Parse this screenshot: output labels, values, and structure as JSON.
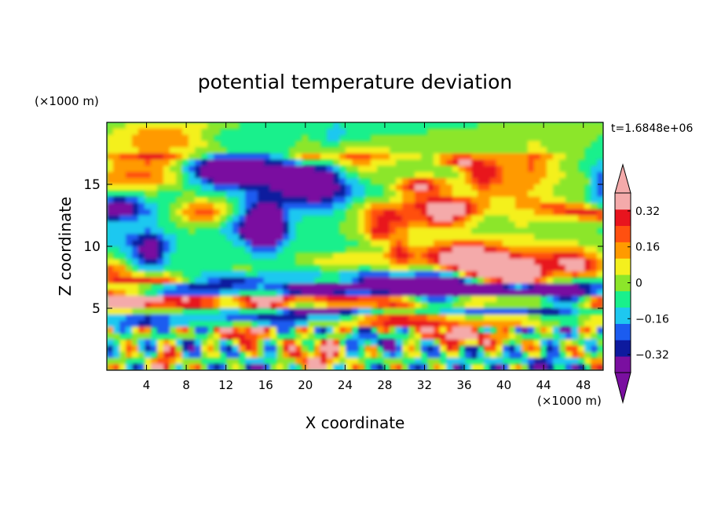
{
  "chart_data": {
    "type": "heatmap",
    "title": "potential temperature deviation",
    "xlabel": "X coordinate",
    "ylabel": "Z coordinate",
    "x_unit": "(×1000 m)",
    "y_unit": "(×1000 m)",
    "time_label": "t=1.6848e+06",
    "xlim": [
      0,
      50
    ],
    "ylim": [
      0,
      20
    ],
    "x_ticks": [
      4,
      8,
      12,
      16,
      20,
      24,
      28,
      32,
      36,
      40,
      44,
      48
    ],
    "y_ticks": [
      5,
      10,
      15
    ],
    "colorbar": {
      "levels": [
        -0.4,
        -0.32,
        -0.24,
        -0.16,
        -0.08,
        0,
        0.08,
        0.16,
        0.24,
        0.32,
        0.4
      ],
      "tick_values": [
        0.32,
        0.16,
        0,
        -0.16,
        -0.32
      ],
      "tick_labels": [
        "0.32",
        "0.16",
        "0",
        "−0.16",
        "−0.32"
      ],
      "colors": [
        "#7a0fa0",
        "#0d1a9e",
        "#1b5cf0",
        "#1ec8f0",
        "#19f08c",
        "#8ce62a",
        "#f4f01e",
        "#ff9a00",
        "#ff5010",
        "#e8141e",
        "#f4aaaa"
      ],
      "under_color": "#7a0fa0",
      "over_color": "#f4aaaa"
    }
  }
}
